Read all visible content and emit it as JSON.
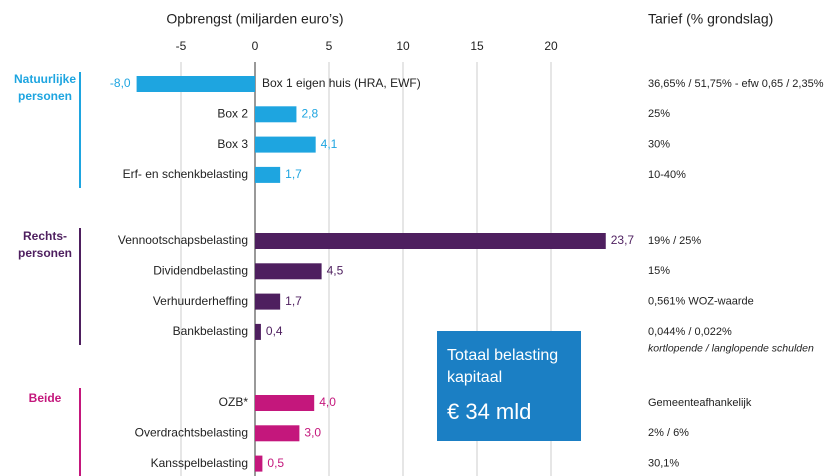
{
  "chart_data": {
    "type": "bar",
    "x_label": "Opbrengst (miljarden euro’s)",
    "rate_label": "Tarief (% grondslag)",
    "xlim": [
      -8,
      24
    ],
    "xticks": [
      -5,
      0,
      5,
      10,
      15,
      20
    ],
    "grid": true,
    "groups": [
      {
        "name": "Natuurlijke personen",
        "color": "#1ea5e0",
        "categories": [
          "Box 1 eigen huis (HRA, EWF)",
          "Box 2",
          "Box 3",
          "Erf- en schenkbelasting"
        ],
        "values": [
          -8.0,
          2.8,
          4.1,
          1.7
        ],
        "value_labels": [
          "-8,0",
          "2,8",
          "4,1",
          "1,7"
        ],
        "rates": [
          "36,65% / 51,75% - efw 0,65 / 2,35%",
          "25%",
          "30%",
          "10-40%"
        ]
      },
      {
        "name": "Rechts- personen",
        "color": "#4e1f5f",
        "categories": [
          "Vennootschapsbelasting",
          "Dividendbelasting",
          "Verhuurderheffing",
          "Bankbelasting"
        ],
        "values": [
          23.7,
          4.5,
          1.7,
          0.4
        ],
        "value_labels": [
          "23,7",
          "4,5",
          "1,7",
          "0,4"
        ],
        "rates": [
          "19% / 25%",
          "15%",
          "0,561% WOZ-waarde",
          [
            "0,044% / 0,022%",
            "kortlopende / langlopende schulden"
          ]
        ]
      },
      {
        "name": "Beide",
        "color": "#c4177c",
        "categories": [
          "OZB*",
          "Overdrachtsbelasting",
          "Kansspelbelasting"
        ],
        "values": [
          4.0,
          3.0,
          0.5
        ],
        "value_labels": [
          "4,0",
          "3,0",
          "0,5"
        ],
        "rates": [
          "Gemeenteafhankelijk",
          "2% / 6%",
          "30,1%"
        ]
      }
    ],
    "box": {
      "lines": [
        "Totaal belasting",
        "kapitaal"
      ],
      "total": "€ 34 mld",
      "color": "#1b7fc4"
    }
  }
}
